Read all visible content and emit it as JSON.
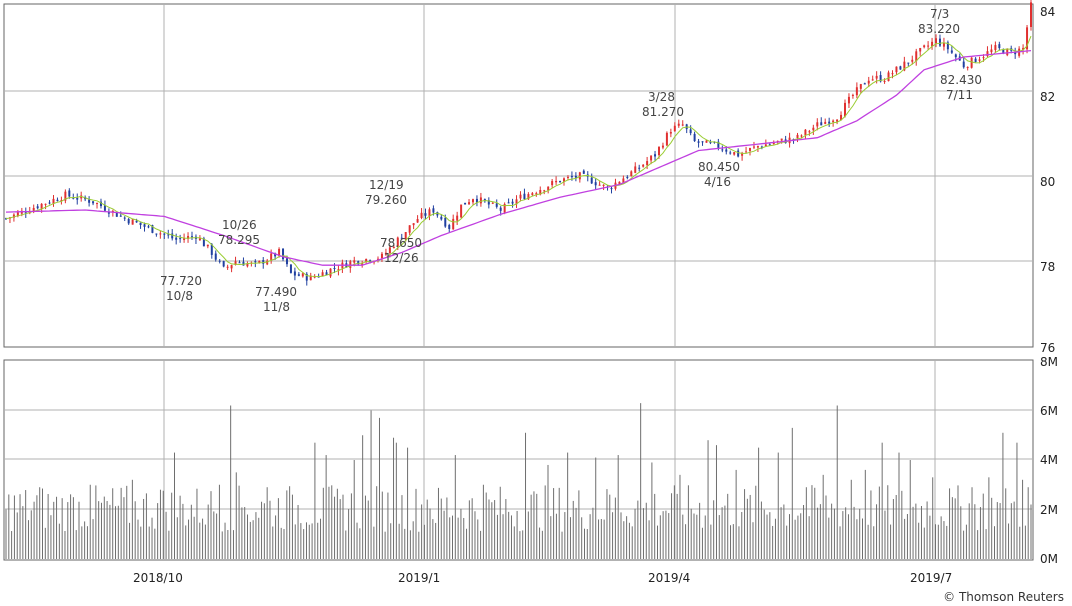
{
  "chart_data": [
    {
      "type": "candlestick",
      "ylim": [
        76,
        84
      ],
      "y_ticks": [
        "84",
        "82",
        "80",
        "78",
        "76"
      ],
      "grid": true,
      "colors": {
        "up": "#e03030",
        "down": "#2040a0",
        "short_ma": "#9acd32",
        "long_ma": "#c040e0"
      },
      "annotations": [
        {
          "value": "77.720",
          "date": "10/8"
        },
        {
          "value": "78.295",
          "date": "10/26"
        },
        {
          "value": "77.490",
          "date": "11/8"
        },
        {
          "value": "79.260",
          "date": "12/19"
        },
        {
          "value": "78.650",
          "date": "12/26"
        },
        {
          "value": "81.270",
          "date": "3/28"
        },
        {
          "value": "80.450",
          "date": "4/16"
        },
        {
          "value": "83.220",
          "date": "7/3"
        },
        {
          "value": "82.430",
          "date": "7/11"
        }
      ],
      "price_path": [
        [
          0,
          79.0
        ],
        [
          8,
          79.3
        ],
        [
          15,
          79.55
        ],
        [
          22,
          79.4
        ],
        [
          30,
          79.0
        ],
        [
          38,
          78.7
        ],
        [
          43,
          78.5
        ],
        [
          48,
          78.6
        ],
        [
          52,
          78.2
        ],
        [
          55,
          77.8
        ],
        [
          58,
          78.0
        ],
        [
          63,
          77.9
        ],
        [
          69,
          78.2
        ],
        [
          72,
          77.7
        ],
        [
          77,
          77.6
        ],
        [
          82,
          77.8
        ],
        [
          88,
          78.0
        ],
        [
          95,
          78.1
        ],
        [
          100,
          78.6
        ],
        [
          104,
          79.0
        ],
        [
          108,
          79.2
        ],
        [
          112,
          78.8
        ],
        [
          115,
          79.3
        ],
        [
          118,
          79.5
        ],
        [
          125,
          79.2
        ],
        [
          130,
          79.5
        ],
        [
          135,
          79.7
        ],
        [
          140,
          79.9
        ],
        [
          145,
          80.0
        ],
        [
          148,
          79.9
        ],
        [
          152,
          79.7
        ],
        [
          155,
          79.9
        ],
        [
          160,
          80.2
        ],
        [
          164,
          80.5
        ],
        [
          168,
          81.1
        ],
        [
          171,
          81.2
        ],
        [
          174,
          80.8
        ],
        [
          180,
          80.7
        ],
        [
          185,
          80.5
        ],
        [
          190,
          80.7
        ],
        [
          195,
          80.8
        ],
        [
          200,
          80.9
        ],
        [
          205,
          81.2
        ],
        [
          210,
          81.4
        ],
        [
          214,
          81.9
        ],
        [
          218,
          82.3
        ],
        [
          222,
          82.3
        ],
        [
          228,
          82.7
        ],
        [
          232,
          83.0
        ],
        [
          235,
          83.2
        ],
        [
          238,
          83.0
        ],
        [
          242,
          82.6
        ],
        [
          246,
          82.8
        ],
        [
          250,
          83.0
        ],
        [
          254,
          82.9
        ],
        [
          257,
          83.0
        ],
        [
          259,
          84.0
        ]
      ],
      "long_ma": [
        [
          0,
          79.15
        ],
        [
          20,
          79.2
        ],
        [
          40,
          79.05
        ],
        [
          55,
          78.6
        ],
        [
          70,
          78.1
        ],
        [
          80,
          77.9
        ],
        [
          90,
          77.9
        ],
        [
          100,
          78.2
        ],
        [
          110,
          78.6
        ],
        [
          125,
          79.1
        ],
        [
          140,
          79.5
        ],
        [
          155,
          79.8
        ],
        [
          165,
          80.2
        ],
        [
          175,
          80.6
        ],
        [
          190,
          80.75
        ],
        [
          205,
          80.9
        ],
        [
          215,
          81.3
        ],
        [
          225,
          81.9
        ],
        [
          232,
          82.5
        ],
        [
          242,
          82.8
        ],
        [
          259,
          82.95
        ]
      ]
    },
    {
      "type": "bar",
      "ylim": [
        0,
        8
      ],
      "y_ticks": [
        "8M",
        "6M",
        "4M",
        "2M",
        "0M"
      ],
      "x_ticks": [
        "2018/10",
        "2019/1",
        "2019/4",
        "2019/7"
      ],
      "spikes": [
        [
          0,
          2.0
        ],
        [
          12,
          2.9
        ],
        [
          22,
          2.3
        ],
        [
          30,
          3.0
        ],
        [
          45,
          3.2
        ],
        [
          55,
          2.8
        ],
        [
          60,
          4.3
        ],
        [
          72,
          2.2
        ],
        [
          76,
          3.0
        ],
        [
          80,
          6.2
        ],
        [
          82,
          3.5
        ],
        [
          85,
          2.1
        ],
        [
          93,
          2.9
        ],
        [
          102,
          2.6
        ],
        [
          110,
          4.7
        ],
        [
          114,
          4.2
        ],
        [
          120,
          2.6
        ],
        [
          124,
          4.0
        ],
        [
          127,
          5.0
        ],
        [
          130,
          6.0
        ],
        [
          133,
          5.7
        ],
        [
          138,
          4.9
        ],
        [
          139,
          4.7
        ],
        [
          143,
          4.5
        ],
        [
          150,
          2.4
        ],
        [
          160,
          4.2
        ],
        [
          170,
          3.0
        ],
        [
          185,
          5.1
        ],
        [
          193,
          3.8
        ],
        [
          200,
          4.3
        ],
        [
          210,
          4.1
        ],
        [
          215,
          2.6
        ],
        [
          218,
          4.2
        ],
        [
          226,
          6.3
        ],
        [
          230,
          3.9
        ],
        [
          240,
          3.4
        ],
        [
          250,
          4.8
        ],
        [
          253,
          4.6
        ],
        [
          260,
          3.6
        ],
        [
          268,
          4.5
        ],
        [
          275,
          4.3
        ],
        [
          280,
          5.3
        ],
        [
          285,
          2.9
        ],
        [
          291,
          3.4
        ],
        [
          296,
          6.2
        ],
        [
          301,
          3.2
        ],
        [
          306,
          3.6
        ],
        [
          312,
          4.7
        ],
        [
          318,
          4.3
        ],
        [
          322,
          4.0
        ],
        [
          330,
          3.3
        ],
        [
          337,
          2.5
        ],
        [
          344,
          2.9
        ],
        [
          350,
          3.3
        ],
        [
          355,
          5.1
        ],
        [
          360,
          4.7
        ],
        [
          362,
          3.2
        ],
        [
          364,
          2.9
        ],
        [
          365,
          2.2
        ]
      ]
    }
  ],
  "credit": "© Thomson Reuters"
}
